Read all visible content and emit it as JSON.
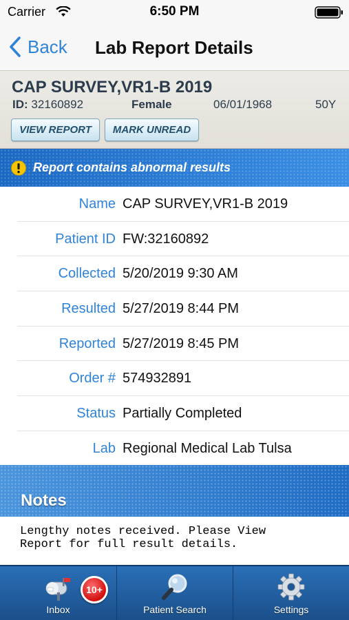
{
  "status_bar": {
    "carrier": "Carrier",
    "time": "6:50 PM"
  },
  "nav": {
    "back_label": "Back",
    "title": "Lab Report Details"
  },
  "patient": {
    "name": "CAP SURVEY,VR1-B 2019",
    "id_label": "ID:",
    "id_value": "32160892",
    "sex": "Female",
    "dob": "06/01/1968",
    "age": "50Y",
    "view_report_label": "VIEW REPORT",
    "mark_unread_label": "MARK UNREAD"
  },
  "alert": {
    "text": "Report contains abnormal results",
    "icon": "warning-icon",
    "color": "#f6c400"
  },
  "details": [
    {
      "label": "Name",
      "value": "CAP SURVEY,VR1-B 2019"
    },
    {
      "label": "Patient ID",
      "value": "FW:32160892"
    },
    {
      "label": "Collected",
      "value": "5/20/2019 9:30 AM"
    },
    {
      "label": "Resulted",
      "value": "5/27/2019 8:44 PM"
    },
    {
      "label": "Reported",
      "value": "5/27/2019 8:45 PM"
    },
    {
      "label": "Order #",
      "value": "574932891"
    },
    {
      "label": "Status",
      "value": "Partially Completed"
    },
    {
      "label": "Lab",
      "value": "Regional Medical Lab Tulsa"
    }
  ],
  "notes": {
    "title": "Notes",
    "line1": "Lengthy notes received. Please View",
    "line2": "Report for full result details."
  },
  "tabs": [
    {
      "label": "Inbox",
      "icon": "mailbox-icon",
      "badge": "10+"
    },
    {
      "label": "Patient Search",
      "icon": "magnifier-icon"
    },
    {
      "label": "Settings",
      "icon": "gear-icon"
    }
  ],
  "colors": {
    "accent": "#2f83d8",
    "tab_bar": "#1b4f8a",
    "badge": "#d20f0f"
  }
}
